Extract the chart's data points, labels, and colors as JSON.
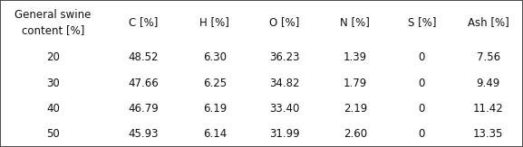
{
  "col_headers": [
    "General swine\ncontent [%]",
    "C [%]",
    "H [%]",
    "O [%]",
    "N [%]",
    "S [%]",
    "Ash [%]"
  ],
  "rows": [
    [
      "20",
      "48.52",
      "6.30",
      "36.23",
      "1.39",
      "0",
      "7.56"
    ],
    [
      "30",
      "47.66",
      "6.25",
      "34.82",
      "1.79",
      "0",
      "9.49"
    ],
    [
      "40",
      "46.79",
      "6.19",
      "33.40",
      "2.19",
      "0",
      "11.42"
    ],
    [
      "50",
      "45.93",
      "6.14",
      "31.99",
      "2.60",
      "0",
      "13.35"
    ]
  ],
  "col_widths": [
    1.75,
    1.25,
    1.1,
    1.2,
    1.15,
    1.05,
    1.15
  ],
  "background_color": "#ffffff",
  "border_color": "#444444",
  "text_color": "#111111",
  "font_size": 8.5,
  "header_font_size": 8.5,
  "fig_width": 5.77,
  "fig_height": 1.63,
  "dpi": 100
}
